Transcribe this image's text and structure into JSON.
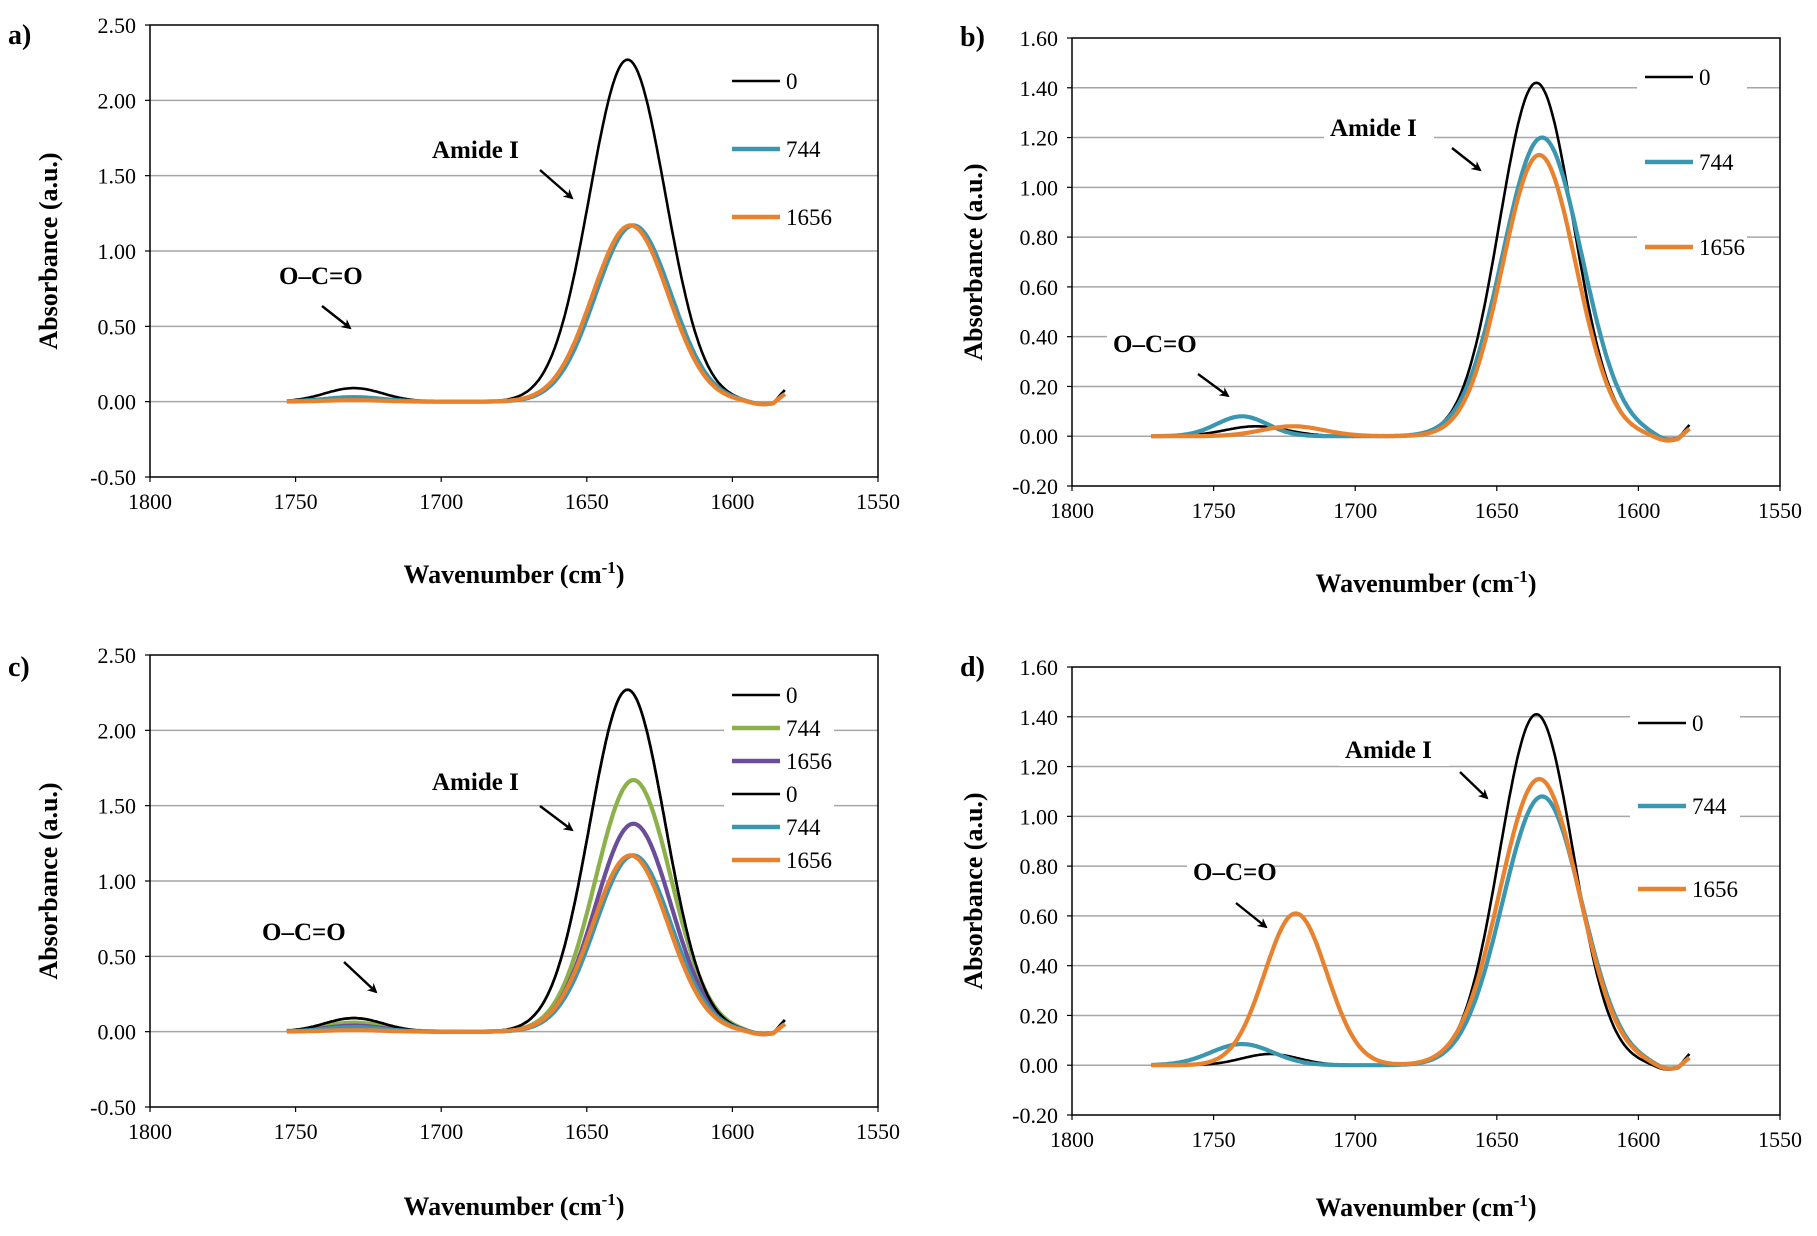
{
  "chart_data": [
    {
      "panel": "a)",
      "type": "line",
      "xlabel": "Wavenumber (cm",
      "xlabel_sup": "-1",
      "xlabel_close": ")",
      "ylabel": "Absorbance (a.u.)",
      "xlim": [
        1800,
        1550
      ],
      "ylim": [
        -0.5,
        2.5
      ],
      "x_ticks": [
        "1800",
        "1750",
        "1700",
        "1650",
        "1600",
        "1550"
      ],
      "y_ticks": [
        "-0.50",
        "0.00",
        "0.50",
        "1.00",
        "1.50",
        "2.00",
        "2.50"
      ],
      "grid": true,
      "legend_position": "top-right",
      "series": [
        {
          "name": "0",
          "color": "#000000",
          "peaks": [
            {
              "center": 1730,
              "height": 0.09,
              "width": 10
            },
            {
              "center": 1636,
              "height": 2.27,
              "width": 13
            }
          ]
        },
        {
          "name": "744",
          "color": "#3B97B0",
          "peaks": [
            {
              "center": 1730,
              "height": 0.03,
              "width": 10
            },
            {
              "center": 1634,
              "height": 1.17,
              "width": 13
            }
          ]
        },
        {
          "name": "1656",
          "color": "#E8822E",
          "peaks": [
            {
              "center": 1730,
              "height": 0.01,
              "width": 10
            },
            {
              "center": 1635,
              "height": 1.17,
              "width": 13
            }
          ]
        }
      ],
      "annotations": [
        {
          "text": "O–C=O"
        },
        {
          "text": "Amide I"
        }
      ]
    },
    {
      "panel": "b)",
      "type": "line",
      "xlabel": "Wavenumber (cm",
      "xlabel_sup": "-1",
      "xlabel_close": ")",
      "ylabel": "Absorbance (a.u.)",
      "xlim": [
        1800,
        1550
      ],
      "ylim": [
        -0.2,
        1.6
      ],
      "x_ticks": [
        "1800",
        "1750",
        "1700",
        "1650",
        "1600",
        "1550"
      ],
      "y_ticks": [
        "-0.20",
        "0.00",
        "0.20",
        "0.40",
        "0.60",
        "0.80",
        "1.00",
        "1.20",
        "1.40",
        "1.60"
      ],
      "grid": true,
      "legend_position": "top-right",
      "series": [
        {
          "name": "0",
          "color": "#000000",
          "peaks": [
            {
              "center": 1735,
              "height": 0.04,
              "width": 11
            },
            {
              "center": 1636,
              "height": 1.42,
              "width": 13
            }
          ]
        },
        {
          "name": "744",
          "color": "#3B97B0",
          "peaks": [
            {
              "center": 1740,
              "height": 0.08,
              "width": 9
            },
            {
              "center": 1634,
              "height": 1.2,
              "width": 14
            }
          ]
        },
        {
          "name": "1656",
          "color": "#E8822E",
          "peaks": [
            {
              "center": 1722,
              "height": 0.04,
              "width": 11
            },
            {
              "center": 1635,
              "height": 1.13,
              "width": 13
            }
          ]
        }
      ],
      "annotations": [
        {
          "text": "O–C=O"
        },
        {
          "text": "Amide I"
        }
      ]
    },
    {
      "panel": "c)",
      "type": "line",
      "xlabel": "Wavenumber (cm",
      "xlabel_sup": "-1",
      "xlabel_close": ")",
      "ylabel": "Absorbance (a.u.)",
      "xlim": [
        1800,
        1550
      ],
      "ylim": [
        -0.5,
        2.5
      ],
      "x_ticks": [
        "1800",
        "1750",
        "1700",
        "1650",
        "1600",
        "1550"
      ],
      "y_ticks": [
        "-0.50",
        "0.00",
        "0.50",
        "1.00",
        "1.50",
        "2.00",
        "2.50"
      ],
      "grid": true,
      "legend_position": "top-right",
      "series": [
        {
          "name": "0",
          "color": "#000000",
          "peaks": [
            {
              "center": 1730,
              "height": 0.09,
              "width": 10
            },
            {
              "center": 1636,
              "height": 2.27,
              "width": 13
            }
          ]
        },
        {
          "name": "744",
          "color": "#8CB04A",
          "peaks": [
            {
              "center": 1730,
              "height": 0.06,
              "width": 10
            },
            {
              "center": 1634,
              "height": 1.67,
              "width": 13
            }
          ]
        },
        {
          "name": "1656",
          "color": "#6A4E9A",
          "peaks": [
            {
              "center": 1730,
              "height": 0.04,
              "width": 10
            },
            {
              "center": 1634,
              "height": 1.38,
              "width": 13
            }
          ]
        },
        {
          "name": "0",
          "color": "#000000",
          "peaks": [
            {
              "center": 1730,
              "height": 0.09,
              "width": 10
            },
            {
              "center": 1636,
              "height": 2.27,
              "width": 13
            }
          ]
        },
        {
          "name": "744",
          "color": "#3B97B0",
          "peaks": [
            {
              "center": 1730,
              "height": 0.03,
              "width": 10
            },
            {
              "center": 1634,
              "height": 1.17,
              "width": 13
            }
          ]
        },
        {
          "name": "1656",
          "color": "#E8822E",
          "peaks": [
            {
              "center": 1730,
              "height": 0.01,
              "width": 10
            },
            {
              "center": 1635,
              "height": 1.17,
              "width": 13
            }
          ]
        }
      ],
      "annotations": [
        {
          "text": "O–C=O"
        },
        {
          "text": "Amide I"
        }
      ]
    },
    {
      "panel": "d)",
      "type": "line",
      "xlabel": "Wavenumber (cm",
      "xlabel_sup": "-1",
      "xlabel_close": ")",
      "ylabel": "Absorbance (a.u.)",
      "xlim": [
        1800,
        1550
      ],
      "ylim": [
        -0.2,
        1.6
      ],
      "x_ticks": [
        "1800",
        "1750",
        "1700",
        "1650",
        "1600",
        "1550"
      ],
      "y_ticks": [
        "-0.20",
        "0.00",
        "0.20",
        "0.40",
        "0.60",
        "0.80",
        "1.00",
        "1.20",
        "1.40",
        "1.60"
      ],
      "grid": true,
      "legend_position": "top-right",
      "series": [
        {
          "name": "0",
          "color": "#000000",
          "peaks": [
            {
              "center": 1730,
              "height": 0.045,
              "width": 10
            },
            {
              "center": 1636,
              "height": 1.41,
              "width": 13
            }
          ]
        },
        {
          "name": "744",
          "color": "#3B97B0",
          "peaks": [
            {
              "center": 1740,
              "height": 0.085,
              "width": 11
            },
            {
              "center": 1634,
              "height": 1.08,
              "width": 14
            }
          ]
        },
        {
          "name": "1656",
          "color": "#E8822E",
          "peaks": [
            {
              "center": 1721,
              "height": 0.61,
              "width": 11
            },
            {
              "center": 1635,
              "height": 1.15,
              "width": 14
            }
          ]
        }
      ],
      "annotations": [
        {
          "text": "O–C=O"
        },
        {
          "text": "Amide I"
        }
      ]
    }
  ]
}
